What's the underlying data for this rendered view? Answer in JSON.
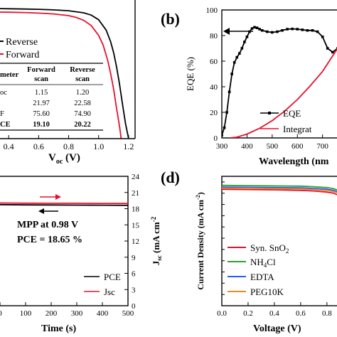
{
  "chart_data": [
    {
      "panel": "a",
      "type": "line",
      "xlabel_main": "V",
      "xlabel_sub": "oc",
      "xlabel_unit": " (V)",
      "x_ticks": [
        "0.4",
        "0.6",
        "0.8",
        "1.0",
        "1.2"
      ],
      "xlim": [
        0.28,
        1.26
      ],
      "ylim": [
        0,
        25
      ],
      "legend": [
        {
          "label": "Reverse",
          "color": "#000000"
        },
        {
          "label": "Forward",
          "color": "#e8102c"
        }
      ],
      "table": {
        "headers": [
          "meter",
          "Forward scan",
          "Reverse scan"
        ],
        "rows": [
          {
            "param": "oc",
            "forward": "1.15",
            "reverse": "1.20",
            "bold": false
          },
          {
            "param": "",
            "forward": "21.97",
            "reverse": "22.58",
            "bold": false
          },
          {
            "param": "F",
            "forward": "75.60",
            "reverse": "74.90",
            "bold": false
          },
          {
            "param": "CE",
            "forward": "19.10",
            "reverse": "20.22",
            "bold": true
          }
        ]
      },
      "series": [
        {
          "name": "Reverse",
          "color": "#000000",
          "x": [
            0.28,
            0.4,
            0.5,
            0.6,
            0.7,
            0.8,
            0.9,
            0.95,
            1.0,
            1.05,
            1.08,
            1.1,
            1.12,
            1.14,
            1.16,
            1.18,
            1.2
          ],
          "y": [
            22.55,
            22.5,
            22.45,
            22.4,
            22.3,
            22.15,
            21.8,
            21.4,
            20.6,
            18.8,
            16.8,
            14.9,
            12.4,
            9.3,
            5.8,
            2.5,
            0
          ]
        },
        {
          "name": "Forward",
          "color": "#e8102c",
          "x": [
            0.28,
            0.4,
            0.5,
            0.6,
            0.7,
            0.8,
            0.85,
            0.9,
            0.95,
            1.0,
            1.03,
            1.06,
            1.08,
            1.1,
            1.12,
            1.14,
            1.15
          ],
          "y": [
            21.95,
            21.9,
            21.85,
            21.75,
            21.6,
            21.3,
            21.0,
            20.5,
            19.6,
            17.9,
            16.2,
            13.6,
            11.3,
            8.6,
            5.2,
            2.0,
            0
          ]
        }
      ]
    },
    {
      "panel": "b",
      "type": "line",
      "label": "(b)",
      "xlabel": "Wavelength (nm",
      "ylabel": "EQE (%)",
      "x_ticks": [
        300,
        400,
        500,
        600,
        700
      ],
      "y_ticks": [
        0,
        20,
        40,
        60,
        80,
        100
      ],
      "xlim": [
        300,
        780
      ],
      "ylim": [
        0,
        100
      ],
      "legend": [
        {
          "label": "EQE",
          "color": "#000000",
          "marker": true
        },
        {
          "label": "Integrat",
          "color": "#e8102c",
          "marker": false
        }
      ],
      "series": [
        {
          "name": "EQE",
          "color": "#000000",
          "markers": true,
          "x": [
            300,
            310,
            320,
            330,
            340,
            350,
            360,
            370,
            380,
            390,
            400,
            410,
            420,
            430,
            440,
            450,
            460,
            480,
            500,
            520,
            540,
            560,
            580,
            600,
            620,
            640,
            660,
            680,
            700,
            720,
            740,
            760
          ],
          "y": [
            2,
            8,
            20,
            36,
            50,
            59,
            63,
            66,
            70,
            75,
            79,
            83,
            85.5,
            86.5,
            86,
            85,
            84,
            83,
            82.5,
            83,
            84,
            85,
            85.2,
            85,
            84.5,
            84,
            84,
            83,
            79,
            70,
            67,
            70
          ]
        },
        {
          "name": "Integrat",
          "color": "#e8102c",
          "markers": false,
          "x": [
            330,
            360,
            400,
            450,
            500,
            550,
            600,
            650,
            700,
            740,
            780
          ],
          "y": [
            0,
            0.6,
            3,
            7.5,
            13.5,
            21,
            30,
            40.5,
            52,
            64,
            76
          ]
        }
      ]
    },
    {
      "panel": "c",
      "type": "line",
      "xlabel": "Time (s)",
      "ylabel_main": "J",
      "ylabel_sub": "sc",
      "ylabel_unit": " (mA cm",
      "ylabel_sup": "-2",
      "x_ticks": [
        0,
        100,
        200,
        300,
        400,
        500
      ],
      "y2_ticks": [
        0,
        3,
        6,
        9,
        12,
        15,
        18,
        21,
        24
      ],
      "xlim": [
        0,
        500
      ],
      "y2lim": [
        0,
        24
      ],
      "annotation_line1": "MPP at  0.98 V",
      "annotation_line2": "PCE = 18.65 %",
      "legend": [
        {
          "label": "PCE",
          "color": "#000000"
        },
        {
          "label": "Jsc",
          "color": "#e8102c"
        }
      ],
      "series": [
        {
          "name": "PCE",
          "color": "#000000",
          "x": [
            0,
            100,
            200,
            300,
            400,
            500
          ],
          "y": [
            18.75,
            18.7,
            18.68,
            18.66,
            18.65,
            18.62
          ]
        },
        {
          "name": "Jsc",
          "color": "#e8102c",
          "x": [
            0,
            100,
            200,
            300,
            400,
            500
          ],
          "y": [
            19.05,
            19.02,
            19.0,
            19.0,
            18.98,
            18.97
          ]
        }
      ]
    },
    {
      "panel": "d",
      "type": "line",
      "label": "(d)",
      "xlabel": "Voltage (V)",
      "ylabel_main": "Current Density (mA cm",
      "ylabel_sup": "-2",
      "ylabel_close": ")",
      "x_ticks": [
        "0.0",
        "0.2",
        "0.4",
        "0.6",
        "0.8"
      ],
      "xlim": [
        0,
        0.92
      ],
      "ylim": [
        0,
        23
      ],
      "legend": [
        {
          "label": "Syn. SnO",
          "sub": "2",
          "color": "#e8102c"
        },
        {
          "label": "NH",
          "sub": "4",
          "tail": "Cl",
          "color": "#2ea02c"
        },
        {
          "label": "EDTA",
          "color": "#2a5cff"
        },
        {
          "label": "PEG10K",
          "color": "#f08a1c"
        }
      ],
      "series": [
        {
          "name": "Syn. SnO2",
          "color": "#e8102c",
          "x": [
            0,
            0.2,
            0.4,
            0.6,
            0.7,
            0.8,
            0.85,
            0.9,
            0.92
          ],
          "y": [
            20.7,
            20.65,
            20.6,
            20.5,
            20.4,
            20.2,
            20.0,
            19.5,
            19.2
          ]
        },
        {
          "name": "NH4Cl",
          "color": "#2ea02c",
          "x": [
            0,
            0.2,
            0.4,
            0.6,
            0.7,
            0.8,
            0.85,
            0.9,
            0.92
          ],
          "y": [
            21.4,
            21.35,
            21.3,
            21.25,
            21.15,
            21.0,
            20.8,
            20.4,
            20.1
          ]
        },
        {
          "name": "EDTA",
          "color": "#2a5cff",
          "x": [
            0,
            0.2,
            0.4,
            0.6,
            0.7,
            0.8,
            0.85,
            0.9,
            0.92
          ],
          "y": [
            21.1,
            21.05,
            21.0,
            20.95,
            20.85,
            20.7,
            20.5,
            20.1,
            19.8
          ]
        },
        {
          "name": "PEG10K",
          "color": "#f08a1c",
          "x": [
            0,
            0.2,
            0.4,
            0.6,
            0.7,
            0.8,
            0.85,
            0.9,
            0.92
          ],
          "y": [
            20.9,
            20.85,
            20.8,
            20.75,
            20.65,
            20.5,
            20.3,
            19.9,
            19.6
          ]
        }
      ]
    }
  ]
}
